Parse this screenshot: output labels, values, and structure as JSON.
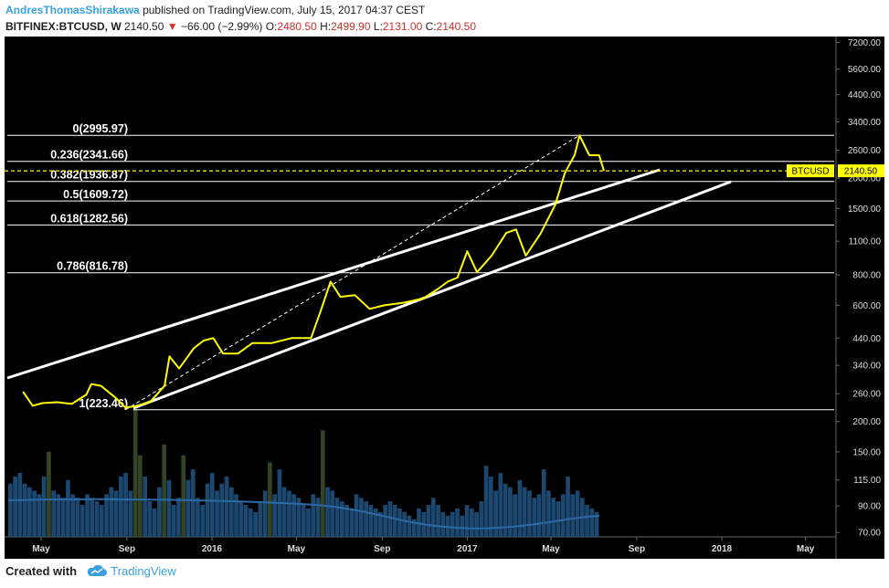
{
  "header": {
    "author": "AndresThomasShirakawa",
    "published": "published on TradingView.com, July 15, 2017 04:37 CEST",
    "symbol": "BITFINEX:BTCUSD, W",
    "last": "2140.50",
    "change": "−66.00 (−2.99%)",
    "open_label": "O:",
    "open": "2480.50",
    "high_label": "H:",
    "high": "2499.90",
    "low_label": "L:",
    "low": "2131.00",
    "close_label": "C:",
    "close": "2140.50"
  },
  "price_tag": {
    "symbol": "BTCUSD",
    "price": "2140.50"
  },
  "footer": {
    "created": "Created with",
    "brand": "TradingView"
  },
  "colors": {
    "background": "#000000",
    "price": "#ffff00",
    "channel": "#ffffff",
    "volume": "#1f4f7a",
    "accent": "#3aa0e0",
    "down": "#d0312d"
  },
  "icons": {
    "logo": "tradingview-cloud-icon",
    "change_direction": "down-triangle-icon"
  },
  "chart_data": {
    "type": "line",
    "y_scale": "log",
    "y_ticks": [
      "7200.00",
      "5600.00",
      "4400.00",
      "3400.00",
      "2600.00",
      "2000.00",
      "1500.00",
      "1100.00",
      "800.00",
      "600.00",
      "440.00",
      "340.00",
      "260.00",
      "200.00",
      "150.00",
      "115.00",
      "90.00",
      "70.00"
    ],
    "x_ticks": [
      "May",
      "Sep",
      "2016",
      "May",
      "Sep",
      "2017",
      "May",
      "Sep",
      "2018",
      "May"
    ],
    "fib_levels": [
      {
        "label": "0(2995.97)",
        "value": 2995.97
      },
      {
        "label": "0.236(2341.66)",
        "value": 2341.66
      },
      {
        "label": "0.382(1936.87)",
        "value": 1936.87
      },
      {
        "label": "0.5(1609.72)",
        "value": 1609.72
      },
      {
        "label": "0.618(1282.56)",
        "value": 1282.56
      },
      {
        "label": "0.786(816.78)",
        "value": 816.78
      },
      {
        "label": "1(223.46)",
        "value": 223.46
      }
    ],
    "series": [
      {
        "values": [
          [
            "2015-04-05",
            265
          ],
          [
            "2015-04-19",
            232
          ],
          [
            "2015-05-03",
            238
          ],
          [
            "2015-05-24",
            240
          ],
          [
            "2015-06-14",
            236
          ],
          [
            "2015-07-05",
            258
          ],
          [
            "2015-07-12",
            285
          ],
          [
            "2015-07-26",
            280
          ],
          [
            "2015-08-16",
            250
          ],
          [
            "2015-08-30",
            228
          ],
          [
            "2015-09-13",
            231
          ],
          [
            "2015-10-04",
            240
          ],
          [
            "2015-10-25",
            280
          ],
          [
            "2015-11-01",
            370
          ],
          [
            "2015-11-15",
            330
          ],
          [
            "2015-12-06",
            400
          ],
          [
            "2015-12-20",
            430
          ],
          [
            "2016-01-03",
            440
          ],
          [
            "2016-01-17",
            380
          ],
          [
            "2016-02-07",
            380
          ],
          [
            "2016-02-28",
            420
          ],
          [
            "2016-03-27",
            420
          ],
          [
            "2016-04-24",
            440
          ],
          [
            "2016-05-22",
            440
          ],
          [
            "2016-06-05",
            570
          ],
          [
            "2016-06-19",
            750
          ],
          [
            "2016-07-03",
            650
          ],
          [
            "2016-07-24",
            660
          ],
          [
            "2016-08-14",
            580
          ],
          [
            "2016-09-04",
            600
          ],
          [
            "2016-10-02",
            615
          ],
          [
            "2016-10-30",
            640
          ],
          [
            "2016-11-20",
            700
          ],
          [
            "2016-12-04",
            750
          ],
          [
            "2016-12-18",
            780
          ],
          [
            "2017-01-01",
            1000
          ],
          [
            "2017-01-15",
            820
          ],
          [
            "2017-02-05",
            960
          ],
          [
            "2017-02-26",
            1190
          ],
          [
            "2017-03-12",
            1230
          ],
          [
            "2017-03-26",
            960
          ],
          [
            "2017-04-16",
            1180
          ],
          [
            "2017-05-07",
            1550
          ],
          [
            "2017-05-21",
            2100
          ],
          [
            "2017-06-04",
            2490
          ],
          [
            "2017-06-11",
            2990
          ],
          [
            "2017-06-25",
            2480
          ],
          [
            "2017-07-09",
            2480
          ],
          [
            "2017-07-16",
            2140.5
          ]
        ]
      }
    ],
    "volume": [
      1500,
      1700,
      1800,
      1500,
      1400,
      1300,
      1200,
      1700,
      2400,
      1300,
      1200,
      1100,
      1600,
      1200,
      1100,
      900,
      1200,
      1100,
      1000,
      900,
      1200,
      1400,
      1300,
      1700,
      1800,
      1300,
      3600,
      2300,
      1700,
      1000,
      800,
      1400,
      2600,
      1600,
      900,
      1100,
      2300,
      1600,
      1900,
      1100,
      900,
      1500,
      1800,
      1300,
      1500,
      1700,
      1400,
      1200,
      1000,
      900,
      800,
      700,
      1000,
      1300,
      2100,
      1200,
      1900,
      1400,
      1300,
      1200,
      1100,
      900,
      800,
      1200,
      1100,
      3000,
      1400,
      1300,
      1100,
      1000,
      900,
      800,
      1200,
      1100,
      1000,
      900,
      800,
      700,
      900,
      1000,
      900,
      800,
      700,
      600,
      500,
      800,
      700,
      900,
      1100,
      900,
      700,
      600,
      700,
      800,
      600,
      900,
      800,
      700,
      1000,
      2000,
      1700,
      1300,
      1800,
      1500,
      1400,
      1200,
      1600,
      1400,
      1300,
      1100,
      1200,
      1900,
      1300,
      1100,
      1000,
      1200,
      1700,
      1200,
      1300,
      1100,
      900,
      800,
      700
    ]
  }
}
